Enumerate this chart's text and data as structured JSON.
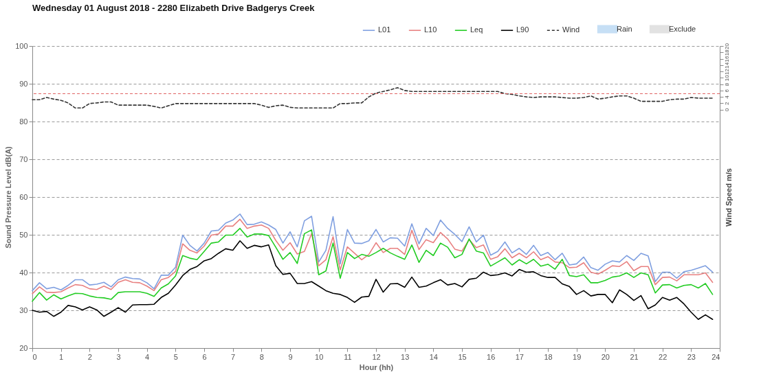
{
  "chart_data": {
    "type": "line",
    "title": "Wednesday 01 August 2018 - 2280 Elizabeth Drive Badgerys Creek",
    "xlabel": "Hour (hh)",
    "ylabel": "Sound Pressure Level dB(A)",
    "y2label": "Wind Speed  m/s",
    "x": [
      0,
      0.25,
      0.5,
      0.75,
      1,
      1.25,
      1.5,
      1.75,
      2,
      2.25,
      2.5,
      2.75,
      3,
      3.25,
      3.5,
      3.75,
      4,
      4.25,
      4.5,
      4.75,
      5,
      5.25,
      5.5,
      5.75,
      6,
      6.25,
      6.5,
      6.75,
      7,
      7.25,
      7.5,
      7.75,
      8,
      8.25,
      8.5,
      8.75,
      9,
      9.25,
      9.5,
      9.75,
      10,
      10.25,
      10.5,
      10.75,
      11,
      11.25,
      11.5,
      11.75,
      12,
      12.25,
      12.5,
      12.75,
      13,
      13.25,
      13.5,
      13.75,
      14,
      14.25,
      14.5,
      14.75,
      15,
      15.25,
      15.5,
      15.75,
      16,
      16.25,
      16.5,
      16.75,
      17,
      17.25,
      17.5,
      17.75,
      18,
      18.25,
      18.5,
      18.75,
      19,
      19.25,
      19.5,
      19.75,
      20,
      20.25,
      20.5,
      20.75,
      21,
      21.25,
      21.5,
      21.75,
      22,
      22.25,
      22.5,
      22.75,
      23,
      23.25,
      23.5,
      23.75
    ],
    "series": [
      {
        "name": "L01",
        "color": "#7f9fe0",
        "values": [
          35.2,
          37.3,
          35.7,
          36.1,
          35.4,
          36.6,
          38.1,
          38.1,
          36.7,
          36.9,
          37.4,
          36.2,
          38.1,
          38.8,
          38.4,
          38.3,
          37.3,
          35.7,
          39.3,
          39.3,
          41.4,
          49.9,
          47.2,
          45.7,
          47.8,
          51.0,
          51.2,
          53.1,
          53.9,
          55.5,
          52.7,
          52.8,
          53.4,
          52.6,
          51.4,
          47.8,
          50.8,
          46.8,
          53.7,
          54.9,
          42.8,
          45.9,
          54.8,
          42.3,
          51.4,
          47.8,
          47.7,
          48.4,
          51.4,
          48.1,
          49.2,
          49.1,
          47.0,
          52.9,
          47.6,
          51.7,
          49.8,
          53.9,
          51.7,
          50.1,
          48.2,
          52.1,
          48.1,
          49.9,
          44.6,
          45.6,
          48.1,
          45.2,
          46.4,
          44.8,
          47.2,
          44.5,
          45.3,
          43.4,
          45.1,
          42.0,
          42.3,
          44.1,
          41.3,
          40.6,
          42.2,
          43.1,
          42.8,
          44.5,
          43.2,
          45.1,
          44.4,
          37.6,
          40.1,
          40.1,
          38.5,
          40.2,
          40.6,
          41.2,
          41.8,
          40.1
        ]
      },
      {
        "name": "L10",
        "color": "#e88080",
        "values": [
          34.4,
          36.2,
          34.8,
          34.7,
          34.9,
          35.9,
          36.8,
          36.6,
          35.7,
          35.5,
          36.4,
          35.5,
          37.4,
          38.1,
          37.4,
          37.3,
          36.4,
          35.2,
          38.1,
          38.7,
          40.3,
          47.6,
          45.9,
          45.2,
          47.0,
          49.9,
          50.2,
          52.3,
          52.3,
          54.1,
          51.7,
          52.3,
          52.6,
          51.7,
          48.5,
          45.9,
          47.9,
          44.9,
          45.6,
          50.3,
          41.8,
          43.4,
          49.5,
          40.7,
          46.8,
          45.1,
          43.4,
          44.8,
          47.9,
          45.3,
          46.4,
          46.4,
          44.8,
          51.2,
          46.1,
          48.7,
          47.9,
          50.6,
          48.9,
          46.2,
          45.7,
          48.7,
          46.6,
          47.3,
          43.5,
          44.2,
          46.3,
          43.9,
          45.1,
          43.9,
          45.5,
          43.4,
          44.2,
          42.8,
          42.6,
          41.3,
          41.4,
          42.6,
          40.1,
          39.6,
          40.6,
          41.8,
          41.6,
          42.9,
          40.5,
          41.6,
          41.6,
          36.8,
          38.7,
          38.8,
          37.8,
          39.4,
          39.4,
          39.4,
          39.9,
          37.4
        ]
      },
      {
        "name": "Leq",
        "color": "#22cc22",
        "values": [
          32.4,
          34.7,
          32.7,
          34.1,
          33.0,
          33.8,
          34.5,
          34.4,
          33.8,
          33.4,
          33.3,
          32.9,
          34.7,
          34.9,
          34.9,
          34.9,
          34.5,
          33.7,
          35.9,
          37.0,
          39.1,
          44.5,
          43.8,
          43.4,
          45.6,
          47.8,
          48.1,
          49.9,
          49.9,
          51.7,
          49.4,
          50.2,
          50.2,
          49.8,
          46.7,
          43.5,
          45.3,
          42.4,
          50.3,
          51.3,
          39.4,
          40.4,
          47.8,
          38.5,
          45.3,
          43.7,
          44.8,
          44.3,
          45.3,
          46.4,
          45.2,
          44.3,
          43.5,
          47.3,
          42.7,
          45.9,
          44.5,
          47.8,
          46.7,
          43.9,
          44.8,
          48.9,
          45.7,
          45.2,
          41.7,
          42.8,
          43.9,
          42.0,
          43.4,
          42.3,
          43.5,
          41.7,
          42.2,
          40.9,
          43.5,
          39.2,
          38.9,
          39.4,
          37.3,
          37.3,
          37.9,
          38.8,
          39.1,
          39.9,
          38.7,
          39.9,
          39.4,
          34.6,
          36.7,
          36.8,
          35.9,
          36.6,
          36.8,
          35.9,
          37.1,
          34.2
        ]
      },
      {
        "name": "L90",
        "color": "#000000",
        "values": [
          30.0,
          29.5,
          29.7,
          28.4,
          29.5,
          31.3,
          30.9,
          30.1,
          30.9,
          30.1,
          28.4,
          29.5,
          30.7,
          29.5,
          31.4,
          31.5,
          31.5,
          31.6,
          33.4,
          34.5,
          36.7,
          39.2,
          40.8,
          41.6,
          43.1,
          43.7,
          45.1,
          46.3,
          45.9,
          48.4,
          46.4,
          47.2,
          46.8,
          47.3,
          41.8,
          39.5,
          39.8,
          37.1,
          37.1,
          37.6,
          36.4,
          35.2,
          34.5,
          34.2,
          33.4,
          32.1,
          33.5,
          33.7,
          38.2,
          34.8,
          37.0,
          37.1,
          36.1,
          38.8,
          36.1,
          36.4,
          37.3,
          38.1,
          36.7,
          37.1,
          36.2,
          38.2,
          38.5,
          40.1,
          39.2,
          39.4,
          39.9,
          39.1,
          40.8,
          40.1,
          40.2,
          39.2,
          38.7,
          38.7,
          37.0,
          36.3,
          34.2,
          35.2,
          33.8,
          34.2,
          34.2,
          32.0,
          35.4,
          34.2,
          32.6,
          33.9,
          30.4,
          31.4,
          33.4,
          32.7,
          33.4,
          31.7,
          29.5,
          27.6,
          28.8,
          27.6
        ]
      },
      {
        "name": "Wind",
        "axis": "y2",
        "line_style": "dashed",
        "color": "#333333",
        "values": [
          3.1,
          3.1,
          3.8,
          3.3,
          2.9,
          2.1,
          0.5,
          0.5,
          1.9,
          2.1,
          2.4,
          2.4,
          1.4,
          1.4,
          1.4,
          1.4,
          1.4,
          1.0,
          0.5,
          1.2,
          1.9,
          1.9,
          1.9,
          1.9,
          1.9,
          1.9,
          1.9,
          1.9,
          1.9,
          1.9,
          1.9,
          1.9,
          1.4,
          0.7,
          1.2,
          1.4,
          0.7,
          0.5,
          0.5,
          0.5,
          0.5,
          0.5,
          0.5,
          1.9,
          1.9,
          2.1,
          2.1,
          4.0,
          5.2,
          5.7,
          6.2,
          6.9,
          6.0,
          5.7,
          5.7,
          5.7,
          5.7,
          5.7,
          5.7,
          5.7,
          5.7,
          5.7,
          5.7,
          5.7,
          5.7,
          5.7,
          5.0,
          4.8,
          4.3,
          4.0,
          3.8,
          4.0,
          4.0,
          4.0,
          3.8,
          3.6,
          3.6,
          3.8,
          4.3,
          3.3,
          3.6,
          4.0,
          4.3,
          4.3,
          3.6,
          2.6,
          2.6,
          2.6,
          2.6,
          3.1,
          3.3,
          3.3,
          3.8,
          3.6,
          3.6,
          3.6
        ]
      },
      {
        "name": "Rain",
        "type": "area",
        "color": "#c6dff5",
        "values": [
          null,
          null,
          null,
          null,
          null,
          null,
          null,
          null,
          null,
          null,
          null,
          null,
          null,
          null,
          null,
          null,
          null,
          null,
          null,
          null,
          null,
          null,
          null,
          null,
          null,
          null,
          null,
          null,
          null,
          null,
          null,
          null,
          null,
          null,
          null,
          null,
          null,
          null,
          null,
          null,
          null,
          null,
          null,
          null,
          null,
          null,
          null,
          null,
          null,
          null,
          null,
          null,
          null,
          null,
          null,
          null,
          null,
          null,
          null,
          null,
          null,
          null,
          null,
          null,
          null,
          null,
          null,
          null,
          null,
          null,
          null,
          null,
          null,
          null,
          null,
          null,
          null,
          null,
          null,
          null,
          null,
          null,
          null,
          null,
          null,
          null,
          null,
          null,
          null,
          null,
          null,
          null,
          null,
          null,
          null,
          null
        ]
      },
      {
        "name": "Exclude",
        "type": "area",
        "color": "#e2e2e2",
        "values": [
          null,
          null,
          null,
          null,
          null,
          null,
          null,
          null,
          null,
          null,
          null,
          null,
          null,
          null,
          null,
          null,
          null,
          null,
          null,
          null,
          null,
          null,
          null,
          null,
          null,
          null,
          null,
          null,
          null,
          null,
          null,
          null,
          null,
          null,
          null,
          null,
          null,
          null,
          null,
          null,
          null,
          null,
          null,
          null,
          null,
          null,
          null,
          null,
          null,
          null,
          null,
          null,
          null,
          null,
          null,
          null,
          null,
          null,
          null,
          null,
          null,
          null,
          null,
          null,
          null,
          null,
          null,
          null,
          null,
          null,
          null,
          null,
          null,
          null,
          null,
          null,
          null,
          null,
          null,
          null,
          null,
          null,
          null,
          null,
          null,
          null,
          null,
          null,
          null,
          null,
          null,
          null,
          null,
          null,
          null,
          null
        ]
      }
    ],
    "xlim": [
      0,
      24
    ],
    "xticks": [
      0,
      1,
      2,
      3,
      4,
      5,
      6,
      7,
      8,
      9,
      10,
      11,
      12,
      13,
      14,
      15,
      16,
      17,
      18,
      19,
      20,
      21,
      22,
      23,
      24
    ],
    "ylim": [
      20,
      100
    ],
    "yticks": [
      20,
      30,
      40,
      50,
      60,
      70,
      80,
      90,
      100
    ],
    "y2lim": [
      -75,
      20
    ],
    "y2ticks": [
      0,
      2,
      4,
      6,
      8,
      10,
      12,
      14,
      16,
      18,
      20
    ],
    "ref_lines": [
      {
        "axis": "y2",
        "value": 5,
        "color": "#e06060",
        "line_style": "dashed"
      }
    ],
    "grid": "y",
    "legend": "top right"
  }
}
